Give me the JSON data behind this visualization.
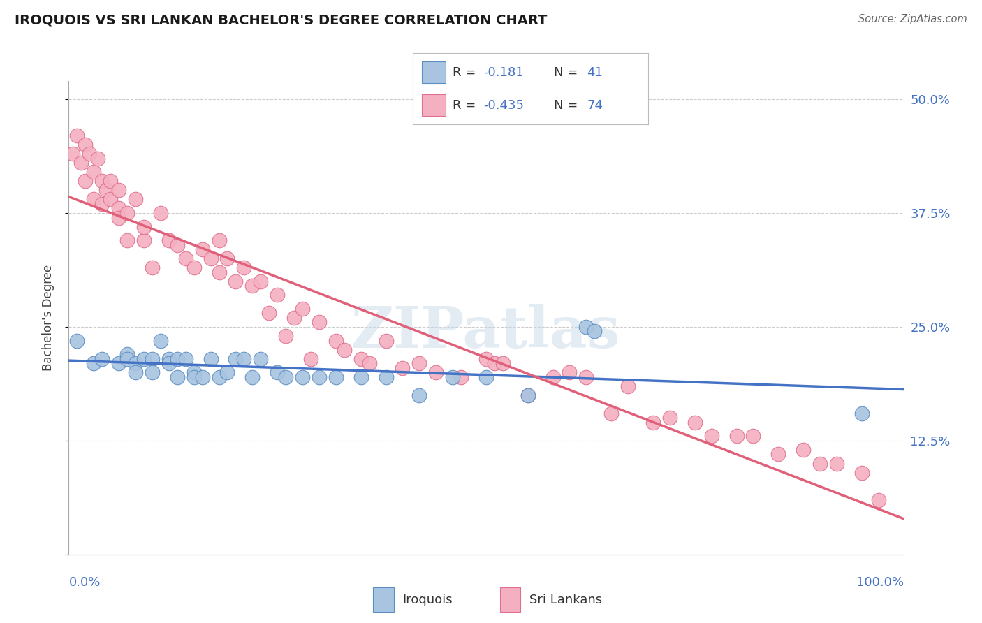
{
  "title": "IROQUOIS VS SRI LANKAN BACHELOR'S DEGREE CORRELATION CHART",
  "source": "Source: ZipAtlas.com",
  "ylabel": "Bachelor's Degree",
  "iroquois_color": "#a8c4e0",
  "iroquois_edge_color": "#5b8ec4",
  "iroquois_line_color": "#4472c4",
  "srilankans_color": "#f4b0c0",
  "srilankans_edge_color": "#e07090",
  "srilankans_line_color": "#e0607a",
  "legend_r_iroquois_val": "-0.181",
  "legend_n_iroquois_val": "41",
  "legend_r_srilankans_val": "-0.435",
  "legend_n_srilankans_val": "74",
  "watermark_text": "ZIPatlas",
  "ytick_vals": [
    0.0,
    0.125,
    0.25,
    0.375,
    0.5
  ],
  "ytick_labels": [
    "",
    "12.5%",
    "25.0%",
    "37.5%",
    "50.0%"
  ],
  "xlim": [
    0,
    1.0
  ],
  "ylim": [
    0,
    0.52
  ],
  "iroquois_x": [
    0.01,
    0.03,
    0.04,
    0.06,
    0.07,
    0.07,
    0.08,
    0.08,
    0.09,
    0.1,
    0.1,
    0.11,
    0.12,
    0.12,
    0.13,
    0.13,
    0.14,
    0.15,
    0.15,
    0.16,
    0.17,
    0.18,
    0.19,
    0.2,
    0.21,
    0.22,
    0.23,
    0.25,
    0.26,
    0.28,
    0.3,
    0.32,
    0.35,
    0.38,
    0.42,
    0.46,
    0.5,
    0.55,
    0.62,
    0.63,
    0.95
  ],
  "iroquois_y": [
    0.235,
    0.21,
    0.215,
    0.21,
    0.22,
    0.215,
    0.21,
    0.2,
    0.215,
    0.215,
    0.2,
    0.235,
    0.215,
    0.21,
    0.215,
    0.195,
    0.215,
    0.2,
    0.195,
    0.195,
    0.215,
    0.195,
    0.2,
    0.215,
    0.215,
    0.195,
    0.215,
    0.2,
    0.195,
    0.195,
    0.195,
    0.195,
    0.195,
    0.195,
    0.175,
    0.195,
    0.195,
    0.175,
    0.25,
    0.245,
    0.155
  ],
  "srilankans_x": [
    0.005,
    0.01,
    0.015,
    0.02,
    0.02,
    0.025,
    0.03,
    0.03,
    0.035,
    0.04,
    0.04,
    0.045,
    0.05,
    0.05,
    0.06,
    0.06,
    0.06,
    0.07,
    0.07,
    0.08,
    0.09,
    0.09,
    0.1,
    0.11,
    0.12,
    0.13,
    0.14,
    0.15,
    0.16,
    0.17,
    0.18,
    0.18,
    0.19,
    0.2,
    0.21,
    0.22,
    0.23,
    0.24,
    0.25,
    0.26,
    0.27,
    0.28,
    0.29,
    0.3,
    0.32,
    0.33,
    0.35,
    0.36,
    0.38,
    0.4,
    0.42,
    0.44,
    0.47,
    0.5,
    0.51,
    0.52,
    0.55,
    0.58,
    0.6,
    0.62,
    0.65,
    0.67,
    0.7,
    0.72,
    0.75,
    0.77,
    0.8,
    0.82,
    0.85,
    0.88,
    0.9,
    0.92,
    0.95,
    0.97
  ],
  "srilankans_y": [
    0.44,
    0.46,
    0.43,
    0.45,
    0.41,
    0.44,
    0.42,
    0.39,
    0.435,
    0.41,
    0.385,
    0.4,
    0.41,
    0.39,
    0.38,
    0.37,
    0.4,
    0.375,
    0.345,
    0.39,
    0.345,
    0.36,
    0.315,
    0.375,
    0.345,
    0.34,
    0.325,
    0.315,
    0.335,
    0.325,
    0.345,
    0.31,
    0.325,
    0.3,
    0.315,
    0.295,
    0.3,
    0.265,
    0.285,
    0.24,
    0.26,
    0.27,
    0.215,
    0.255,
    0.235,
    0.225,
    0.215,
    0.21,
    0.235,
    0.205,
    0.21,
    0.2,
    0.195,
    0.215,
    0.21,
    0.21,
    0.175,
    0.195,
    0.2,
    0.195,
    0.155,
    0.185,
    0.145,
    0.15,
    0.145,
    0.13,
    0.13,
    0.13,
    0.11,
    0.115,
    0.1,
    0.1,
    0.09,
    0.06
  ]
}
